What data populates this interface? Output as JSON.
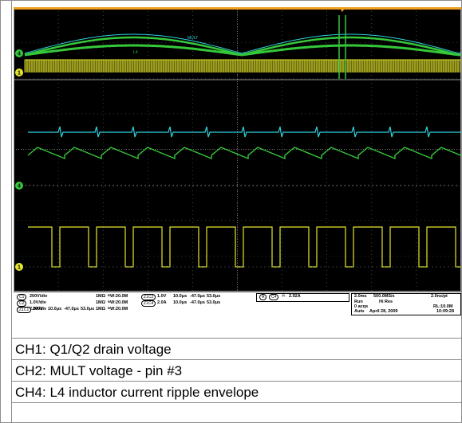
{
  "scope": {
    "status": {
      "c1": {
        "badge": "C1",
        "scale": "200V/div",
        "imp": "1MΩ",
        "bw": "B",
        "bw_val": "W:20.0M"
      },
      "c2": {
        "badge": "C2",
        "scale": "1.0V/div",
        "imp": "1MΩ",
        "bw": "B",
        "bw_val": "W:20.0M"
      },
      "c4": {
        "badge": "C4",
        "scale": "2.0A/div",
        "imp": "1MΩ",
        "bw": "B",
        "bw_val": "W:20.0M"
      },
      "z1c1": {
        "badge": "Z1C1",
        "scale": "200V",
        "t1": "10.0μs",
        "t2": "-47.0μs",
        "t3": "53.0μs"
      },
      "z1c2": {
        "badge": "Z1C2",
        "scale": "1.0V",
        "t1": "10.0μs",
        "t2": "-47.0μs",
        "t3": "53.0μs"
      },
      "z1c4": {
        "badge": "Z1C4",
        "scale": "2.0A",
        "t1": "10.0μs",
        "t2": "-47.0μs",
        "t3": "53.0μs"
      },
      "trigger": {
        "mode": "A",
        "source": "C4",
        "level": "2.92A"
      },
      "timebase": {
        "time_div": "2.0ms",
        "sample_rate": "500.0MS/s",
        "pt": "2.0ns/pt",
        "run": "Run",
        "mode": "Hi Res",
        "acqs": "0 acqs",
        "rl": "RL:10.0M",
        "auto": "Auto",
        "date": "April 28, 2009",
        "time": "10:09:28"
      }
    },
    "markers": {
      "ch1": "1",
      "ch2": "2",
      "ch4": "4"
    },
    "trace_labels": {
      "mult": "MULT",
      "l4": "L4"
    },
    "colors": {
      "ch1": "#e6e62e",
      "ch2": "#2fd3e0",
      "ch4": "#35c93a",
      "grid": "#6a6a6a",
      "bg": "#000000"
    }
  },
  "captions": [
    "CH1: Q1/Q2 drain voltage",
    "CH2: MULT voltage - pin #3",
    "CH4: L4 inductor current ripple envelope"
  ]
}
